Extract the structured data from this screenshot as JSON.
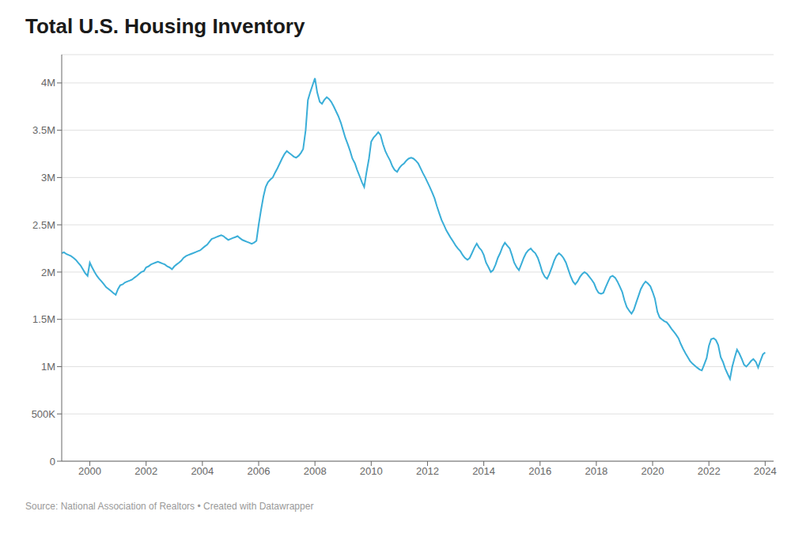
{
  "chart_data": {
    "type": "line",
    "title": "Total U.S. Housing Inventory",
    "annotations": [
      "Source: National Association of Realtors • Created with Datawrapper"
    ],
    "color": "#3aaed8",
    "grid": "y",
    "xlim": [
      1999.0,
      2024.3
    ],
    "ylim": [
      0,
      4300000
    ],
    "xticks": [
      2000,
      2002,
      2004,
      2006,
      2008,
      2010,
      2012,
      2014,
      2016,
      2018,
      2020,
      2022,
      2024
    ],
    "yticks": [
      0,
      {
        "value": 500000,
        "label": "500K"
      },
      {
        "value": 1000000,
        "label": "1M"
      },
      {
        "value": 1500000,
        "label": "1.5M"
      },
      {
        "value": 2000000,
        "label": "2M"
      },
      {
        "value": 2500000,
        "label": "2.5M"
      },
      {
        "value": 3000000,
        "label": "3M"
      },
      {
        "value": 3500000,
        "label": "3.5M"
      },
      {
        "value": 4000000,
        "label": "4M"
      }
    ],
    "x": [
      1999.0,
      1999.08,
      1999.17,
      1999.25,
      1999.33,
      1999.42,
      1999.5,
      1999.58,
      1999.67,
      1999.75,
      1999.83,
      1999.92,
      2000.0,
      2000.08,
      2000.17,
      2000.25,
      2000.33,
      2000.42,
      2000.5,
      2000.58,
      2000.67,
      2000.75,
      2000.83,
      2000.92,
      2001.0,
      2001.08,
      2001.17,
      2001.25,
      2001.33,
      2001.42,
      2001.5,
      2001.58,
      2001.67,
      2001.75,
      2001.83,
      2001.92,
      2002.0,
      2002.08,
      2002.17,
      2002.25,
      2002.33,
      2002.42,
      2002.5,
      2002.58,
      2002.67,
      2002.75,
      2002.83,
      2002.92,
      2003.0,
      2003.08,
      2003.17,
      2003.25,
      2003.33,
      2003.42,
      2003.5,
      2003.58,
      2003.67,
      2003.75,
      2003.83,
      2003.92,
      2004.0,
      2004.08,
      2004.17,
      2004.25,
      2004.33,
      2004.42,
      2004.5,
      2004.58,
      2004.67,
      2004.75,
      2004.83,
      2004.92,
      2005.0,
      2005.08,
      2005.17,
      2005.25,
      2005.33,
      2005.42,
      2005.5,
      2005.58,
      2005.67,
      2005.75,
      2005.83,
      2005.92,
      2006.0,
      2006.08,
      2006.17,
      2006.25,
      2006.33,
      2006.42,
      2006.5,
      2006.58,
      2006.67,
      2006.75,
      2006.83,
      2006.92,
      2007.0,
      2007.08,
      2007.17,
      2007.25,
      2007.33,
      2007.42,
      2007.5,
      2007.58,
      2007.67,
      2007.75,
      2007.83,
      2007.92,
      2008.0,
      2008.08,
      2008.17,
      2008.25,
      2008.33,
      2008.42,
      2008.5,
      2008.58,
      2008.67,
      2008.75,
      2008.83,
      2008.92,
      2009.0,
      2009.08,
      2009.17,
      2009.25,
      2009.33,
      2009.42,
      2009.5,
      2009.58,
      2009.67,
      2009.75,
      2009.83,
      2009.92,
      2010.0,
      2010.08,
      2010.17,
      2010.25,
      2010.33,
      2010.42,
      2010.5,
      2010.58,
      2010.67,
      2010.75,
      2010.83,
      2010.92,
      2011.0,
      2011.08,
      2011.17,
      2011.25,
      2011.33,
      2011.42,
      2011.5,
      2011.58,
      2011.67,
      2011.75,
      2011.83,
      2011.92,
      2012.0,
      2012.08,
      2012.17,
      2012.25,
      2012.33,
      2012.42,
      2012.5,
      2012.58,
      2012.67,
      2012.75,
      2012.83,
      2012.92,
      2013.0,
      2013.08,
      2013.17,
      2013.25,
      2013.33,
      2013.42,
      2013.5,
      2013.58,
      2013.67,
      2013.75,
      2013.83,
      2013.92,
      2014.0,
      2014.08,
      2014.17,
      2014.25,
      2014.33,
      2014.42,
      2014.5,
      2014.58,
      2014.67,
      2014.75,
      2014.83,
      2014.92,
      2015.0,
      2015.08,
      2015.17,
      2015.25,
      2015.33,
      2015.42,
      2015.5,
      2015.58,
      2015.67,
      2015.75,
      2015.83,
      2015.92,
      2016.0,
      2016.08,
      2016.17,
      2016.25,
      2016.33,
      2016.42,
      2016.5,
      2016.58,
      2016.67,
      2016.75,
      2016.83,
      2016.92,
      2017.0,
      2017.08,
      2017.17,
      2017.25,
      2017.33,
      2017.42,
      2017.5,
      2017.58,
      2017.67,
      2017.75,
      2017.83,
      2017.92,
      2018.0,
      2018.08,
      2018.17,
      2018.25,
      2018.33,
      2018.42,
      2018.5,
      2018.58,
      2018.67,
      2018.75,
      2018.83,
      2018.92,
      2019.0,
      2019.08,
      2019.17,
      2019.25,
      2019.33,
      2019.42,
      2019.5,
      2019.58,
      2019.67,
      2019.75,
      2019.83,
      2019.92,
      2020.0,
      2020.08,
      2020.17,
      2020.25,
      2020.33,
      2020.42,
      2020.5,
      2020.58,
      2020.67,
      2020.75,
      2020.83,
      2020.92,
      2021.0,
      2021.08,
      2021.17,
      2021.25,
      2021.33,
      2021.42,
      2021.5,
      2021.58,
      2021.67,
      2021.75,
      2021.83,
      2021.92,
      2022.0,
      2022.08,
      2022.17,
      2022.25,
      2022.33,
      2022.42,
      2022.5,
      2022.58,
      2022.67,
      2022.75,
      2022.83,
      2022.92,
      2023.0,
      2023.08,
      2023.17,
      2023.25,
      2023.33,
      2023.42,
      2023.5,
      2023.58,
      2023.67,
      2023.75,
      2023.83,
      2023.92,
      2024.0
    ],
    "values": [
      2200000,
      2210000,
      2190000,
      2180000,
      2170000,
      2150000,
      2130000,
      2100000,
      2070000,
      2030000,
      1990000,
      1960000,
      2100000,
      2050000,
      2000000,
      1960000,
      1930000,
      1900000,
      1870000,
      1840000,
      1820000,
      1800000,
      1780000,
      1760000,
      1820000,
      1860000,
      1870000,
      1890000,
      1900000,
      1910000,
      1920000,
      1940000,
      1960000,
      1980000,
      2000000,
      2010000,
      2050000,
      2060000,
      2080000,
      2090000,
      2100000,
      2110000,
      2100000,
      2090000,
      2080000,
      2060000,
      2050000,
      2030000,
      2060000,
      2080000,
      2100000,
      2120000,
      2150000,
      2170000,
      2180000,
      2190000,
      2200000,
      2210000,
      2220000,
      2230000,
      2250000,
      2270000,
      2290000,
      2320000,
      2350000,
      2360000,
      2370000,
      2380000,
      2390000,
      2380000,
      2360000,
      2340000,
      2350000,
      2360000,
      2370000,
      2380000,
      2360000,
      2340000,
      2330000,
      2320000,
      2310000,
      2300000,
      2310000,
      2330000,
      2500000,
      2650000,
      2800000,
      2900000,
      2950000,
      2980000,
      3000000,
      3050000,
      3100000,
      3150000,
      3200000,
      3250000,
      3280000,
      3260000,
      3240000,
      3220000,
      3210000,
      3230000,
      3260000,
      3300000,
      3500000,
      3820000,
      3900000,
      3980000,
      4050000,
      3900000,
      3800000,
      3780000,
      3820000,
      3850000,
      3830000,
      3800000,
      3750000,
      3700000,
      3650000,
      3580000,
      3500000,
      3420000,
      3350000,
      3280000,
      3200000,
      3150000,
      3080000,
      3020000,
      2950000,
      2900000,
      3050000,
      3200000,
      3380000,
      3420000,
      3450000,
      3480000,
      3450000,
      3350000,
      3280000,
      3230000,
      3180000,
      3120000,
      3080000,
      3060000,
      3100000,
      3130000,
      3150000,
      3180000,
      3200000,
      3210000,
      3200000,
      3180000,
      3150000,
      3100000,
      3050000,
      3000000,
      2950000,
      2900000,
      2840000,
      2780000,
      2700000,
      2620000,
      2550000,
      2500000,
      2440000,
      2400000,
      2360000,
      2320000,
      2280000,
      2250000,
      2220000,
      2180000,
      2150000,
      2130000,
      2150000,
      2200000,
      2260000,
      2300000,
      2260000,
      2230000,
      2180000,
      2100000,
      2050000,
      2000000,
      2020000,
      2080000,
      2150000,
      2200000,
      2270000,
      2310000,
      2280000,
      2250000,
      2180000,
      2100000,
      2050000,
      2020000,
      2080000,
      2150000,
      2200000,
      2230000,
      2250000,
      2220000,
      2200000,
      2150000,
      2080000,
      2000000,
      1950000,
      1930000,
      1980000,
      2050000,
      2120000,
      2170000,
      2200000,
      2180000,
      2150000,
      2100000,
      2030000,
      1960000,
      1900000,
      1870000,
      1900000,
      1950000,
      1980000,
      2000000,
      1980000,
      1950000,
      1920000,
      1880000,
      1820000,
      1780000,
      1770000,
      1780000,
      1840000,
      1900000,
      1950000,
      1960000,
      1940000,
      1900000,
      1850000,
      1790000,
      1700000,
      1630000,
      1590000,
      1560000,
      1600000,
      1680000,
      1750000,
      1820000,
      1870000,
      1900000,
      1880000,
      1850000,
      1790000,
      1720000,
      1580000,
      1520000,
      1500000,
      1480000,
      1470000,
      1440000,
      1400000,
      1370000,
      1340000,
      1300000,
      1240000,
      1190000,
      1140000,
      1100000,
      1060000,
      1030000,
      1010000,
      990000,
      970000,
      960000,
      1020000,
      1090000,
      1220000,
      1290000,
      1300000,
      1280000,
      1230000,
      1100000,
      1050000,
      980000,
      920000,
      870000,
      1000000,
      1100000,
      1180000,
      1140000,
      1080000,
      1020000,
      1000000,
      1030000,
      1060000,
      1080000,
      1050000,
      990000,
      1060000,
      1130000,
      1150000
    ]
  }
}
